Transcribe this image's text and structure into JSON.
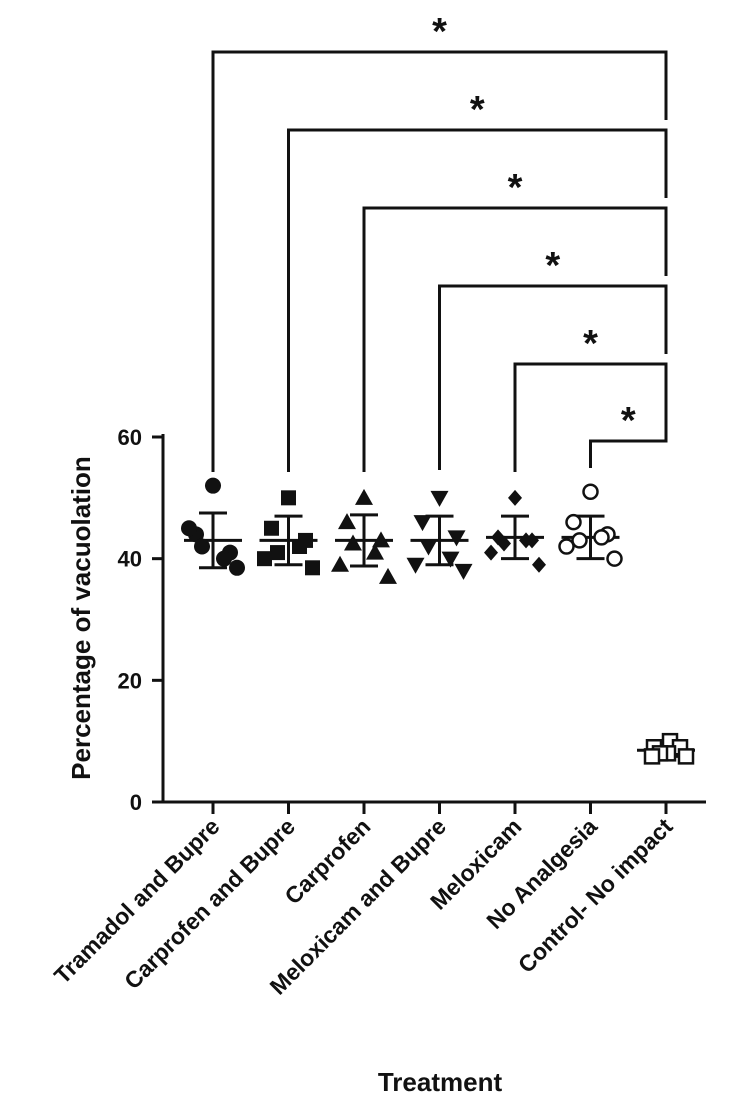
{
  "chart_data": {
    "type": "scatter",
    "subtype": "dot-plot-with-mean-and-sd",
    "xlabel": "Treatment",
    "ylabel": "Percentage of vacuolation",
    "ylim": [
      0,
      60
    ],
    "yticks": [
      0,
      20,
      40,
      60
    ],
    "categories": [
      "Tramadol and Bupre",
      "Carprofen and Bupre",
      "Carprofen",
      "Meloxicam and Bupre",
      "Meloxicam",
      "No Analgesia",
      "Control- No impact"
    ],
    "series": [
      {
        "name": "Tramadol and Bupre",
        "marker": "circle-filled",
        "mean": 43,
        "sd": 4.5,
        "points": [
          52,
          44,
          41,
          42,
          40,
          45,
          38.5
        ]
      },
      {
        "name": "Carprofen and Bupre",
        "marker": "square-filled",
        "mean": 43,
        "sd": 4,
        "points": [
          50,
          45,
          43,
          41,
          42,
          40,
          38.5
        ]
      },
      {
        "name": "Carprofen",
        "marker": "triangle-up-filled",
        "mean": 43,
        "sd": 4.2,
        "points": [
          50,
          46,
          43,
          42.5,
          41,
          39,
          37
        ]
      },
      {
        "name": "Meloxicam and Bupre",
        "marker": "triangle-down-filled",
        "mean": 43,
        "sd": 4,
        "points": [
          50,
          46,
          43.5,
          42,
          40,
          39,
          38
        ]
      },
      {
        "name": "Meloxicam",
        "marker": "diamond-filled",
        "mean": 43.5,
        "sd": 3.5,
        "points": [
          50,
          43.5,
          43,
          42.5,
          43,
          41,
          39
        ]
      },
      {
        "name": "No Analgesia",
        "marker": "circle-open",
        "mean": 43.5,
        "sd": 3.5,
        "points": [
          51,
          46,
          44,
          43,
          43.5,
          42,
          40
        ]
      },
      {
        "name": "Control- No impact",
        "marker": "square-open",
        "mean": 8.5,
        "sd": 1,
        "points": [
          10,
          9,
          9,
          8,
          8,
          7.5,
          7.5
        ]
      }
    ],
    "comparisons": [
      {
        "from": "Tramadol and Bupre",
        "to": "Control- No impact",
        "label": "*"
      },
      {
        "from": "Carprofen and Bupre",
        "to": "Control- No impact",
        "label": "*"
      },
      {
        "from": "Carprofen",
        "to": "Control- No impact",
        "label": "*"
      },
      {
        "from": "Meloxicam and Bupre",
        "to": "Control- No impact",
        "label": "*"
      },
      {
        "from": "Meloxicam",
        "to": "Control- No impact",
        "label": "*"
      },
      {
        "from": "No Analgesia",
        "to": "Control- No impact",
        "label": "*"
      }
    ]
  }
}
